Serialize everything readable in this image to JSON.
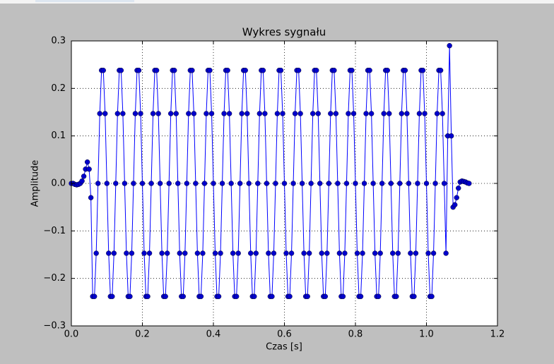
{
  "chart_data": {
    "type": "line",
    "title": "Wykres sygnału",
    "x_label": "Czas [s]",
    "y_label": "Amplitude",
    "x": [
      0,
      0.005,
      0.01,
      0.015,
      0.02,
      0.025,
      0.03,
      0.035,
      0.04,
      0.045,
      0.05,
      0.055,
      0.06,
      0.065,
      0.07,
      0.075,
      0.08,
      0.085,
      0.09,
      0.095,
      0.1,
      0.105,
      0.11,
      0.115,
      0.12,
      0.125,
      0.13,
      0.135,
      0.14,
      0.145,
      0.15,
      0.155,
      0.16,
      0.165,
      0.17,
      0.175,
      0.18,
      0.185,
      0.19,
      0.195,
      0.2,
      0.205,
      0.21,
      0.215,
      0.22,
      0.225,
      0.23,
      0.235,
      0.24,
      0.245,
      0.25,
      0.255,
      0.26,
      0.265,
      0.27,
      0.275,
      0.28,
      0.285,
      0.29,
      0.295,
      0.3,
      0.305,
      0.31,
      0.315,
      0.32,
      0.325,
      0.33,
      0.335,
      0.34,
      0.345,
      0.35,
      0.355,
      0.36,
      0.365,
      0.37,
      0.375,
      0.38,
      0.385,
      0.39,
      0.395,
      0.4,
      0.405,
      0.41,
      0.415,
      0.42,
      0.425,
      0.43,
      0.435,
      0.44,
      0.445,
      0.45,
      0.455,
      0.46,
      0.465,
      0.47,
      0.475,
      0.48,
      0.485,
      0.49,
      0.495,
      0.5,
      0.505,
      0.51,
      0.515,
      0.52,
      0.525,
      0.53,
      0.535,
      0.54,
      0.545,
      0.55,
      0.555,
      0.56,
      0.565,
      0.57,
      0.575,
      0.58,
      0.585,
      0.59,
      0.595,
      0.6,
      0.605,
      0.61,
      0.615,
      0.62,
      0.625,
      0.63,
      0.635,
      0.64,
      0.645,
      0.65,
      0.655,
      0.66,
      0.665,
      0.67,
      0.675,
      0.68,
      0.685,
      0.69,
      0.695,
      0.7,
      0.705,
      0.71,
      0.715,
      0.72,
      0.725,
      0.73,
      0.735,
      0.74,
      0.745,
      0.75,
      0.755,
      0.76,
      0.765,
      0.77,
      0.775,
      0.78,
      0.785,
      0.79,
      0.795,
      0.8,
      0.805,
      0.81,
      0.815,
      0.82,
      0.825,
      0.83,
      0.835,
      0.84,
      0.845,
      0.85,
      0.855,
      0.86,
      0.865,
      0.87,
      0.875,
      0.88,
      0.885,
      0.89,
      0.895,
      0.9,
      0.905,
      0.91,
      0.915,
      0.92,
      0.925,
      0.93,
      0.935,
      0.94,
      0.945,
      0.95,
      0.955,
      0.96,
      0.965,
      0.97,
      0.975,
      0.98,
      0.985,
      0.99,
      0.995,
      1.0,
      1.005,
      1.01,
      1.015,
      1.02,
      1.025,
      1.03,
      1.035,
      1.04,
      1.045,
      1.05,
      1.055,
      1.06,
      1.065,
      1.07,
      1.075,
      1.08,
      1.085,
      1.09,
      1.095,
      1.1,
      1.105,
      1.11,
      1.115,
      1.12
    ],
    "series": [
      {
        "color": "#0000ff",
        "marker_color": "#0000cc",
        "values": [
          0,
          0,
          -0.002,
          -0.003,
          -0.002,
          0,
          0.005,
          0.015,
          0.03,
          0.045,
          0.03,
          -0.03,
          -0.238,
          -0.238,
          -0.147,
          0,
          0.147,
          0.238,
          0.238,
          0.147,
          0,
          -0.147,
          -0.238,
          -0.238,
          -0.147,
          0,
          0.147,
          0.238,
          0.238,
          0.147,
          0,
          -0.147,
          -0.238,
          -0.238,
          -0.147,
          0,
          0.147,
          0.238,
          0.238,
          0.147,
          0,
          -0.147,
          -0.238,
          -0.238,
          -0.147,
          0,
          0.147,
          0.238,
          0.238,
          0.147,
          0,
          -0.147,
          -0.238,
          -0.238,
          -0.147,
          0,
          0.147,
          0.238,
          0.238,
          0.147,
          0,
          -0.147,
          -0.238,
          -0.238,
          -0.147,
          0,
          0.147,
          0.238,
          0.238,
          0.147,
          0,
          -0.147,
          -0.238,
          -0.238,
          -0.147,
          0,
          0.147,
          0.238,
          0.238,
          0.147,
          0,
          -0.147,
          -0.238,
          -0.238,
          -0.147,
          0,
          0.147,
          0.238,
          0.238,
          0.147,
          0,
          -0.147,
          -0.238,
          -0.238,
          -0.147,
          0,
          0.147,
          0.238,
          0.238,
          0.147,
          0,
          -0.147,
          -0.238,
          -0.238,
          -0.147,
          0,
          0.147,
          0.238,
          0.238,
          0.147,
          0,
          -0.147,
          -0.238,
          -0.238,
          -0.147,
          0,
          0.147,
          0.238,
          0.238,
          0.147,
          0,
          -0.147,
          -0.238,
          -0.238,
          -0.147,
          0,
          0.147,
          0.238,
          0.238,
          0.147,
          0,
          -0.147,
          -0.238,
          -0.238,
          -0.147,
          0,
          0.147,
          0.238,
          0.238,
          0.147,
          0,
          -0.147,
          -0.238,
          -0.238,
          -0.147,
          0,
          0.147,
          0.238,
          0.238,
          0.147,
          0,
          -0.147,
          -0.238,
          -0.238,
          -0.147,
          0,
          0.147,
          0.238,
          0.238,
          0.147,
          0,
          -0.147,
          -0.238,
          -0.238,
          -0.147,
          0,
          0.147,
          0.238,
          0.238,
          0.147,
          0,
          -0.147,
          -0.238,
          -0.238,
          -0.147,
          0,
          0.147,
          0.238,
          0.238,
          0.147,
          0,
          -0.147,
          -0.238,
          -0.238,
          -0.147,
          0,
          0.147,
          0.238,
          0.238,
          0.147,
          0,
          -0.147,
          -0.238,
          -0.238,
          -0.147,
          0,
          0.147,
          0.238,
          0.238,
          0.147,
          0,
          -0.147,
          -0.238,
          -0.238,
          -0.147,
          0,
          0.147,
          0.238,
          0.238,
          0.147,
          0,
          -0.147,
          0.1,
          0.29,
          0.1,
          -0.05,
          -0.045,
          -0.03,
          -0.01,
          0.003,
          0.005,
          0.004,
          0.003,
          0.001,
          0
        ]
      }
    ],
    "xlim": [
      0,
      1.2
    ],
    "ylim": [
      -0.3,
      0.3
    ],
    "xticks": [
      {
        "value": 0,
        "label": "0.0"
      },
      0.2,
      0.4,
      0.6,
      0.8,
      {
        "value": 1,
        "label": "1.0"
      },
      1.2
    ],
    "yticks": [
      {
        "value": -0.3,
        "label": "−0.3"
      },
      {
        "value": -0.2,
        "label": "−0.2"
      },
      {
        "value": -0.1,
        "label": "−0.1"
      },
      {
        "value": 0,
        "label": "0.0"
      },
      0.1,
      0.2,
      0.3
    ],
    "grid": true
  }
}
